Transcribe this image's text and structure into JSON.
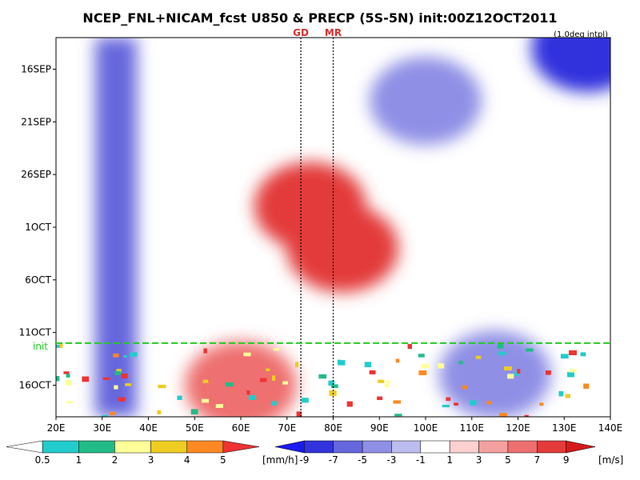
{
  "chart_data": {
    "type": "heatmap",
    "title": "NCEP_FNL+NICAM_fcst U850 & PRECP (5S-5N) init:00Z12OCT2011",
    "subtitle": "(1.0deg intpl)",
    "x_axis": {
      "range": [
        20,
        140
      ],
      "ticks": [
        20,
        30,
        40,
        50,
        60,
        70,
        80,
        90,
        100,
        110,
        120,
        130,
        140
      ],
      "tick_labels": [
        "20E",
        "30E",
        "40E",
        "50E",
        "60E",
        "70E",
        "80E",
        "90E",
        "100E",
        "110E",
        "120E",
        "130E",
        "140E"
      ]
    },
    "y_axis": {
      "inverted": true,
      "ticks": [
        "2011-09-16",
        "2011-09-21",
        "2011-09-26",
        "2011-10-01",
        "2011-10-06",
        "2011-10-11",
        "2011-10-16"
      ],
      "tick_labels": [
        "16SEP",
        "21SEP",
        "26SEP",
        "1OCT",
        "6OCT",
        "11OCT",
        "16OCT"
      ],
      "range": [
        "2011-09-13",
        "2011-10-19"
      ]
    },
    "markers": [
      {
        "label": "GD",
        "lon": 73,
        "style": "dotted",
        "color": "#000000"
      },
      {
        "label": "MR",
        "lon": 80,
        "style": "dotted",
        "color": "#000000"
      }
    ],
    "init_line": {
      "label": "init",
      "date": "2011-10-12",
      "color": "#22cc22",
      "style": "dashed"
    },
    "precip_colorbar": {
      "unit": "[mm/h]",
      "levels": [
        0.5,
        1,
        2,
        3,
        4,
        5
      ],
      "tick_labels": [
        "0.5",
        "1",
        "2",
        "3",
        "4",
        "5"
      ],
      "colors": [
        "#ffffff",
        "#22cccc",
        "#22bb88",
        "#ffff99",
        "#eecc22",
        "#ff8822",
        "#ee3333"
      ]
    },
    "u850_colorbar": {
      "unit": "[m/s]",
      "levels": [
        -9,
        -7,
        -5,
        -3,
        -1,
        1,
        3,
        5,
        7,
        9
      ],
      "tick_labels": [
        "-9",
        "-7",
        "-5",
        "-3",
        "-1",
        "1",
        "3",
        "5",
        "7",
        "9"
      ],
      "colors": [
        "#1a1aee",
        "#3333dd",
        "#6666dd",
        "#8f8fe6",
        "#bcbcee",
        "#ffffff",
        "#ffd0d0",
        "#f4a0a0",
        "#ee6f6f",
        "#e33a3a",
        "#d41a1a"
      ]
    },
    "u850_field": {
      "description_points": [
        {
          "lon": 33,
          "date": "2011-09-13",
          "date_end": "2011-10-19",
          "value": -6
        },
        {
          "lon": 75,
          "date": "2011-09-29",
          "value": 7
        },
        {
          "lon": 82,
          "date": "2011-10-03",
          "value": 7
        },
        {
          "lon": 60,
          "date": "2011-10-16",
          "value": 6
        },
        {
          "lon": 100,
          "date": "2011-09-19",
          "value": -4
        },
        {
          "lon": 135,
          "date": "2011-09-14",
          "value": -8
        },
        {
          "lon": 115,
          "date": "2011-10-15",
          "value": -5
        }
      ]
    }
  }
}
